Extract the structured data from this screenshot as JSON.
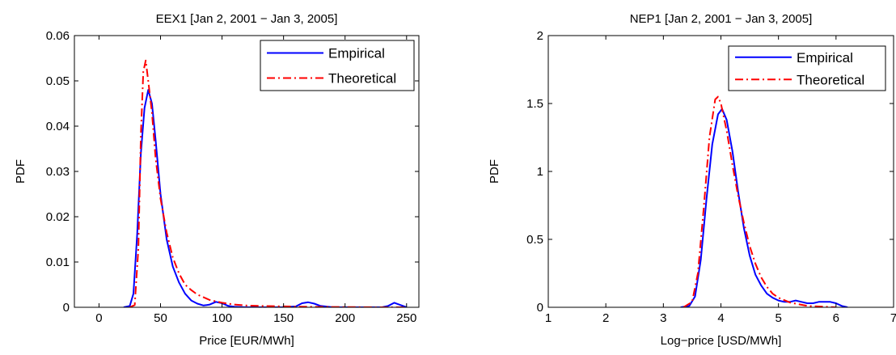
{
  "chart_data": [
    {
      "type": "line",
      "title": "EEX1 [Jan 2, 2001 − Jan 3, 2005]",
      "xlabel": "Price [EUR/MWh]",
      "ylabel": "PDF",
      "xlim": [
        -20,
        260
      ],
      "ylim": [
        0,
        0.06
      ],
      "xticks": [
        0,
        50,
        100,
        150,
        200,
        250
      ],
      "yticks": [
        0,
        0.01,
        0.02,
        0.03,
        0.04,
        0.05,
        0.06
      ],
      "xtick_labels": [
        "0",
        "50",
        "100",
        "150",
        "200",
        "250"
      ],
      "ytick_labels": [
        "0",
        "0.01",
        "0.02",
        "0.03",
        "0.04",
        "0.05",
        "0.06"
      ],
      "legend": "top-right",
      "series": [
        {
          "name": "Empirical",
          "color": "#0000ff",
          "style": "solid",
          "x": [
            20,
            25,
            28,
            31,
            34,
            37,
            40,
            43,
            46,
            50,
            55,
            60,
            65,
            70,
            75,
            80,
            85,
            90,
            95,
            100,
            105,
            110,
            120,
            130,
            140,
            150,
            160,
            165,
            170,
            175,
            180,
            190,
            200,
            210,
            220,
            230,
            235,
            240,
            245,
            250
          ],
          "y": [
            0,
            0.0003,
            0.003,
            0.016,
            0.034,
            0.044,
            0.048,
            0.045,
            0.037,
            0.025,
            0.015,
            0.009,
            0.0055,
            0.003,
            0.0015,
            0.0008,
            0.0004,
            0.0006,
            0.0012,
            0.0009,
            0.0003,
            0.0001,
            0,
            0,
            0,
            0,
            0.0002,
            0.0009,
            0.0011,
            0.0008,
            0.0003,
            0,
            0,
            0,
            0,
            0,
            0.0003,
            0.001,
            0.0005,
            0
          ]
        },
        {
          "name": "Theoretical",
          "color": "#ff0000",
          "style": "dashdot",
          "x": [
            25,
            29,
            32,
            34,
            36,
            38,
            40,
            43,
            46,
            50,
            55,
            60,
            65,
            70,
            75,
            80,
            90,
            100,
            110,
            120,
            130,
            150,
            170,
            200,
            230,
            250
          ],
          "y": [
            0,
            0.0005,
            0.013,
            0.038,
            0.052,
            0.0545,
            0.05,
            0.043,
            0.033,
            0.024,
            0.0165,
            0.011,
            0.0075,
            0.005,
            0.0038,
            0.0028,
            0.0016,
            0.001,
            0.0006,
            0.0004,
            0.0003,
            0.0002,
            0.0001,
            5e-05,
            0,
            0
          ]
        }
      ]
    },
    {
      "type": "line",
      "title": "NEP1 [Jan 2, 2001 − Jan 3, 2005]",
      "xlabel": "Log−price [USD/MWh]",
      "ylabel": "PDF",
      "xlim": [
        1,
        7
      ],
      "ylim": [
        0,
        2
      ],
      "xticks": [
        1,
        2,
        3,
        4,
        5,
        6,
        7
      ],
      "yticks": [
        0,
        0.5,
        1,
        1.5,
        2
      ],
      "xtick_labels": [
        "1",
        "2",
        "3",
        "4",
        "5",
        "6",
        "7"
      ],
      "ytick_labels": [
        "0",
        "0.5",
        "1",
        "1.5",
        "2"
      ],
      "legend": "top-right",
      "series": [
        {
          "name": "Empirical",
          "color": "#0000ff",
          "style": "solid",
          "x": [
            3.3,
            3.45,
            3.55,
            3.65,
            3.75,
            3.85,
            3.95,
            4.02,
            4.1,
            4.2,
            4.3,
            4.4,
            4.5,
            4.6,
            4.7,
            4.8,
            4.9,
            5.0,
            5.1,
            5.2,
            5.3,
            5.4,
            5.5,
            5.6,
            5.7,
            5.8,
            5.9,
            6.0,
            6.1,
            6.2
          ],
          "y": [
            0,
            0.01,
            0.08,
            0.35,
            0.8,
            1.2,
            1.42,
            1.46,
            1.38,
            1.15,
            0.85,
            0.58,
            0.38,
            0.24,
            0.16,
            0.1,
            0.07,
            0.05,
            0.04,
            0.04,
            0.05,
            0.04,
            0.03,
            0.03,
            0.04,
            0.04,
            0.04,
            0.03,
            0.01,
            0
          ]
        },
        {
          "name": "Theoretical",
          "color": "#ff0000",
          "style": "dashdot",
          "x": [
            3.35,
            3.5,
            3.6,
            3.7,
            3.8,
            3.9,
            3.95,
            4.0,
            4.1,
            4.2,
            4.3,
            4.4,
            4.5,
            4.6,
            4.7,
            4.8,
            4.9,
            5.0,
            5.2,
            5.5,
            6.0
          ],
          "y": [
            0,
            0.04,
            0.25,
            0.72,
            1.25,
            1.53,
            1.55,
            1.5,
            1.3,
            1.05,
            0.82,
            0.62,
            0.45,
            0.32,
            0.22,
            0.15,
            0.1,
            0.07,
            0.035,
            0.01,
            0
          ]
        }
      ]
    }
  ]
}
